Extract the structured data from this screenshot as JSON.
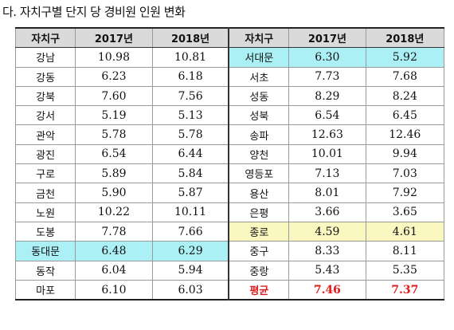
{
  "title": "다. 자치구별 단지 당 경비원 인원 변화",
  "table": {
    "headers": [
      "자치구",
      "2017년",
      "2018년",
      "자치구",
      "2017년",
      "2018년"
    ],
    "rows": [
      {
        "left": [
          "강남",
          "10.98",
          "10.81"
        ],
        "right": [
          "서대문",
          "6.30",
          "5.92"
        ]
      },
      {
        "left": [
          "강동",
          "6.23",
          "6.18"
        ],
        "right": [
          "서초",
          "7.73",
          "7.68"
        ]
      },
      {
        "left": [
          "강북",
          "7.60",
          "7.56"
        ],
        "right": [
          "성동",
          "8.29",
          "8.24"
        ]
      },
      {
        "left": [
          "강서",
          "5.19",
          "5.13"
        ],
        "right": [
          "성북",
          "6.54",
          "6.45"
        ]
      },
      {
        "left": [
          "관악",
          "5.78",
          "5.78"
        ],
        "right": [
          "송파",
          "12.63",
          "12.46"
        ]
      },
      {
        "left": [
          "광진",
          "6.54",
          "6.44"
        ],
        "right": [
          "양천",
          "10.01",
          "9.94"
        ]
      },
      {
        "left": [
          "구로",
          "5.89",
          "5.84"
        ],
        "right": [
          "영등포",
          "7.13",
          "7.03"
        ]
      },
      {
        "left": [
          "금천",
          "5.90",
          "5.87"
        ],
        "right": [
          "용산",
          "8.01",
          "7.92"
        ]
      },
      {
        "left": [
          "노원",
          "10.22",
          "10.11"
        ],
        "right": [
          "은평",
          "3.66",
          "3.65"
        ]
      },
      {
        "left": [
          "도봉",
          "7.78",
          "7.66"
        ],
        "right": [
          "종로",
          "4.59",
          "4.61"
        ]
      },
      {
        "left": [
          "동대문",
          "6.48",
          "6.29"
        ],
        "right": [
          "중구",
          "8.33",
          "8.11"
        ]
      },
      {
        "left": [
          "동작",
          "6.04",
          "5.94"
        ],
        "right": [
          "중랑",
          "5.43",
          "5.35"
        ]
      },
      {
        "left": [
          "마포",
          "6.10",
          "6.03"
        ],
        "right": [
          "평균",
          "7.46",
          "7.37"
        ]
      }
    ],
    "highlight_colors": {
      "cyan": "#aaf0f4",
      "yellow": "#fbf7c1",
      "average_text": "#e01b1b"
    },
    "highlights": {
      "cyan": [
        "서대문",
        "동대문"
      ],
      "yellow": [
        "종로"
      ],
      "red_text": [
        "평균"
      ]
    }
  }
}
